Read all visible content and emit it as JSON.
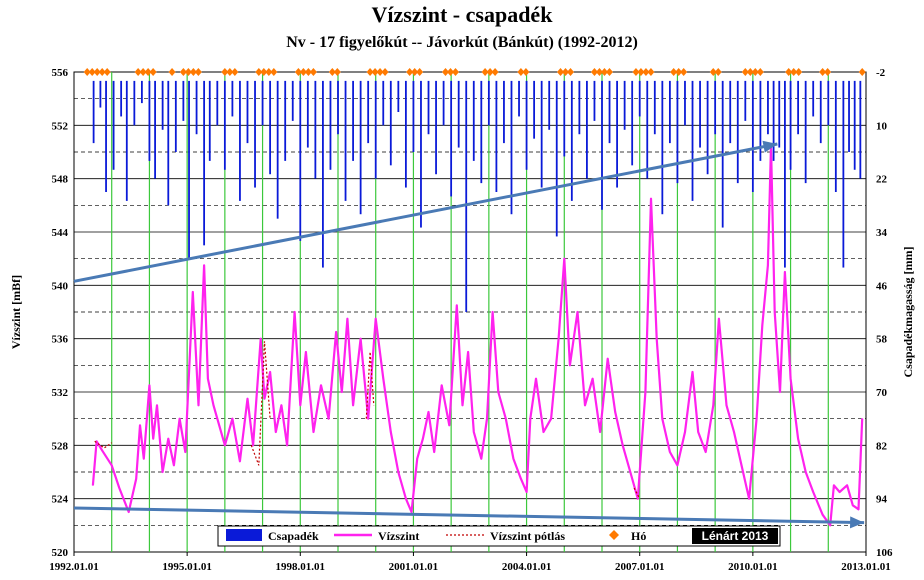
{
  "chart_data": {
    "type": "line",
    "title": "Vízszint - csapadék",
    "subtitle": "Nv - 17 figyelőkút -- Jávorkút (Bánkút) (1992-2012)",
    "ylabel": "Vízszint [mBf]",
    "y2label": "Csapadékmagasság [mm]",
    "xlabel": "",
    "ylim": [
      520,
      556
    ],
    "y2lim": [
      -2,
      106
    ],
    "yticks": [
      520,
      524,
      528,
      532,
      536,
      540,
      544,
      548,
      552,
      556
    ],
    "y2ticks": [
      -2,
      10,
      22,
      34,
      46,
      58,
      70,
      82,
      94,
      106
    ],
    "xlim": [
      1992.0,
      2013.0
    ],
    "xticks": [
      {
        "value": 1992.0,
        "label": "1992.01.01"
      },
      {
        "value": 1995.0,
        "label": "1995.01.01"
      },
      {
        "value": 1998.0,
        "label": "1998.01.01"
      },
      {
        "value": 2001.0,
        "label": "2001.01.01"
      },
      {
        "value": 2004.0,
        "label": "2004.01.01"
      },
      {
        "value": 2007.0,
        "label": "2007.01.01"
      },
      {
        "value": 2010.0,
        "label": "2010.01.01"
      },
      {
        "value": 2013.0,
        "label": "2013.01.01"
      }
    ],
    "legend": {
      "placement": "bottom",
      "entries": [
        {
          "name": "Csapadék",
          "symbol": "bar",
          "color": "#0a1ad8"
        },
        {
          "name": "Vízszint",
          "symbol": "line",
          "color": "#ff22ee"
        },
        {
          "name": "Vízszint pótlás",
          "symbol": "dotted",
          "color": "#c00000"
        },
        {
          "name": "Hó",
          "symbol": "diamond",
          "color": "#ff7a00"
        }
      ]
    },
    "credit": "Lénárt 2013",
    "series": [
      {
        "name": "Vízszint",
        "color": "#ff22ee",
        "points": [
          [
            1992.5,
            525.0
          ],
          [
            1992.6,
            528.3
          ],
          [
            1992.75,
            527.6
          ],
          [
            1993.0,
            526.5
          ],
          [
            1993.2,
            524.8
          ],
          [
            1993.45,
            523.0
          ],
          [
            1993.65,
            525.5
          ],
          [
            1993.75,
            529.5
          ],
          [
            1993.85,
            527.0
          ],
          [
            1994.0,
            532.5
          ],
          [
            1994.1,
            528.5
          ],
          [
            1994.2,
            531.0
          ],
          [
            1994.35,
            526.0
          ],
          [
            1994.5,
            528.5
          ],
          [
            1994.65,
            526.5
          ],
          [
            1994.8,
            530.0
          ],
          [
            1994.95,
            527.5
          ],
          [
            1995.15,
            539.5
          ],
          [
            1995.3,
            531.0
          ],
          [
            1995.45,
            541.5
          ],
          [
            1995.55,
            533.0
          ],
          [
            1995.7,
            531.0
          ],
          [
            1995.85,
            529.5
          ],
          [
            1996.0,
            528.0
          ],
          [
            1996.2,
            530.0
          ],
          [
            1996.4,
            526.8
          ],
          [
            1996.6,
            531.5
          ],
          [
            1996.75,
            528.0
          ],
          [
            1996.95,
            536.0
          ],
          [
            1997.05,
            531.5
          ],
          [
            1997.2,
            533.5
          ],
          [
            1997.35,
            529.0
          ],
          [
            1997.5,
            531.0
          ],
          [
            1997.65,
            528.0
          ],
          [
            1997.85,
            538.0
          ],
          [
            1998.0,
            531.0
          ],
          [
            1998.15,
            535.0
          ],
          [
            1998.35,
            529.0
          ],
          [
            1998.55,
            532.5
          ],
          [
            1998.75,
            530.0
          ],
          [
            1998.95,
            536.5
          ],
          [
            1999.1,
            532.0
          ],
          [
            1999.25,
            537.5
          ],
          [
            1999.4,
            531.0
          ],
          [
            1999.6,
            536.0
          ],
          [
            1999.8,
            530.0
          ],
          [
            2000.0,
            537.5
          ],
          [
            2000.2,
            533.0
          ],
          [
            2000.4,
            529.0
          ],
          [
            2000.6,
            526.0
          ],
          [
            2000.8,
            524.0
          ],
          [
            2000.95,
            523.0
          ],
          [
            2001.1,
            527.0
          ],
          [
            2001.25,
            528.5
          ],
          [
            2001.4,
            530.5
          ],
          [
            2001.55,
            527.5
          ],
          [
            2001.75,
            532.5
          ],
          [
            2001.95,
            529.5
          ],
          [
            2002.15,
            538.5
          ],
          [
            2002.3,
            531.0
          ],
          [
            2002.45,
            535.0
          ],
          [
            2002.6,
            529.0
          ],
          [
            2002.8,
            527.0
          ],
          [
            2002.95,
            530.0
          ],
          [
            2003.1,
            538.0
          ],
          [
            2003.25,
            532.0
          ],
          [
            2003.45,
            530.0
          ],
          [
            2003.65,
            527.0
          ],
          [
            2003.85,
            525.5
          ],
          [
            2004.0,
            524.5
          ],
          [
            2004.1,
            530.0
          ],
          [
            2004.25,
            533.0
          ],
          [
            2004.45,
            529.0
          ],
          [
            2004.65,
            530.0
          ],
          [
            2004.85,
            536.0
          ],
          [
            2005.0,
            542.0
          ],
          [
            2005.15,
            534.0
          ],
          [
            2005.35,
            538.0
          ],
          [
            2005.55,
            531.0
          ],
          [
            2005.75,
            533.0
          ],
          [
            2005.95,
            529.0
          ],
          [
            2006.15,
            534.5
          ],
          [
            2006.35,
            530.5
          ],
          [
            2006.55,
            528.0
          ],
          [
            2006.75,
            526.0
          ],
          [
            2006.95,
            524.0
          ],
          [
            2007.15,
            532.0
          ],
          [
            2007.3,
            546.5
          ],
          [
            2007.45,
            536.0
          ],
          [
            2007.6,
            530.0
          ],
          [
            2007.8,
            527.5
          ],
          [
            2008.0,
            526.5
          ],
          [
            2008.2,
            529.0
          ],
          [
            2008.4,
            533.5
          ],
          [
            2008.55,
            529.0
          ],
          [
            2008.75,
            527.5
          ],
          [
            2008.95,
            531.0
          ],
          [
            2009.1,
            537.5
          ],
          [
            2009.3,
            531.0
          ],
          [
            2009.5,
            529.0
          ],
          [
            2009.7,
            526.5
          ],
          [
            2009.9,
            524.0
          ],
          [
            2010.1,
            530.0
          ],
          [
            2010.25,
            537.0
          ],
          [
            2010.4,
            541.5
          ],
          [
            2010.48,
            550.5
          ],
          [
            2010.58,
            538.0
          ],
          [
            2010.72,
            532.0
          ],
          [
            2010.85,
            541.0
          ],
          [
            2011.0,
            533.0
          ],
          [
            2011.2,
            528.5
          ],
          [
            2011.4,
            526.0
          ],
          [
            2011.6,
            524.5
          ],
          [
            2011.85,
            522.8
          ],
          [
            2012.05,
            522.0
          ],
          [
            2012.15,
            525.0
          ],
          [
            2012.3,
            524.5
          ],
          [
            2012.5,
            525.0
          ],
          [
            2012.65,
            523.5
          ],
          [
            2012.8,
            523.2
          ],
          [
            2012.9,
            530.0
          ]
        ]
      },
      {
        "name": "Vízszint pótlás",
        "color": "#c00000",
        "segments": [
          [
            [
              1992.55,
              528.3
            ],
            [
              1992.8,
              527.8
            ],
            [
              1993.0,
              528.2
            ]
          ],
          [
            [
              1996.7,
              528.0
            ],
            [
              1996.9,
              526.5
            ],
            [
              1997.05,
              535.8
            ],
            [
              1997.2,
              530.0
            ]
          ],
          [
            [
              1999.75,
              530.0
            ],
            [
              1999.85,
              535.0
            ],
            [
              1999.95,
              531.0
            ]
          ],
          [
            [
              2006.85,
              524.8
            ],
            [
              2007.0,
              524.0
            ]
          ]
        ]
      }
    ],
    "precipitation": {
      "name": "Csapadék",
      "color": "#0a1ad8",
      "unit": "mm",
      "values": [
        [
          1992.52,
          14
        ],
        [
          1992.7,
          6
        ],
        [
          1992.85,
          25
        ],
        [
          1993.05,
          20
        ],
        [
          1993.25,
          8
        ],
        [
          1993.4,
          27
        ],
        [
          1993.6,
          10
        ],
        [
          1993.8,
          5
        ],
        [
          1994.0,
          18
        ],
        [
          1994.15,
          22
        ],
        [
          1994.35,
          11
        ],
        [
          1994.5,
          28
        ],
        [
          1994.7,
          16
        ],
        [
          1994.9,
          9
        ],
        [
          1995.05,
          40
        ],
        [
          1995.25,
          12
        ],
        [
          1995.45,
          37
        ],
        [
          1995.6,
          18
        ],
        [
          1995.8,
          10
        ],
        [
          1996.0,
          20
        ],
        [
          1996.2,
          8
        ],
        [
          1996.4,
          27
        ],
        [
          1996.6,
          14
        ],
        [
          1996.8,
          24
        ],
        [
          1997.0,
          10
        ],
        [
          1997.2,
          21
        ],
        [
          1997.4,
          31
        ],
        [
          1997.6,
          18
        ],
        [
          1997.8,
          9
        ],
        [
          1998.0,
          36
        ],
        [
          1998.2,
          15
        ],
        [
          1998.4,
          22
        ],
        [
          1998.6,
          42
        ],
        [
          1998.8,
          20
        ],
        [
          1999.0,
          12
        ],
        [
          1999.2,
          27
        ],
        [
          1999.4,
          18
        ],
        [
          1999.6,
          30
        ],
        [
          1999.8,
          14
        ],
        [
          2000.0,
          22
        ],
        [
          2000.2,
          10
        ],
        [
          2000.4,
          19
        ],
        [
          2000.6,
          7
        ],
        [
          2000.8,
          24
        ],
        [
          2001.0,
          16
        ],
        [
          2001.2,
          33
        ],
        [
          2001.4,
          12
        ],
        [
          2001.6,
          21
        ],
        [
          2001.8,
          10
        ],
        [
          2002.0,
          26
        ],
        [
          2002.2,
          15
        ],
        [
          2002.4,
          52
        ],
        [
          2002.6,
          18
        ],
        [
          2002.8,
          23
        ],
        [
          2003.0,
          10
        ],
        [
          2003.2,
          25
        ],
        [
          2003.4,
          14
        ],
        [
          2003.6,
          30
        ],
        [
          2003.8,
          8
        ],
        [
          2004.0,
          20
        ],
        [
          2004.2,
          13
        ],
        [
          2004.4,
          24
        ],
        [
          2004.6,
          11
        ],
        [
          2004.8,
          35
        ],
        [
          2005.0,
          17
        ],
        [
          2005.2,
          27
        ],
        [
          2005.4,
          12
        ],
        [
          2005.6,
          22
        ],
        [
          2005.8,
          9
        ],
        [
          2006.0,
          29
        ],
        [
          2006.2,
          14
        ],
        [
          2006.4,
          24
        ],
        [
          2006.6,
          11
        ],
        [
          2006.8,
          19
        ],
        [
          2007.0,
          8
        ],
        [
          2007.2,
          22
        ],
        [
          2007.4,
          12
        ],
        [
          2007.6,
          30
        ],
        [
          2007.8,
          14
        ],
        [
          2008.0,
          23
        ],
        [
          2008.2,
          10
        ],
        [
          2008.4,
          27
        ],
        [
          2008.6,
          15
        ],
        [
          2008.8,
          21
        ],
        [
          2009.0,
          12
        ],
        [
          2009.2,
          33
        ],
        [
          2009.4,
          14
        ],
        [
          2009.6,
          23
        ],
        [
          2009.8,
          9
        ],
        [
          2010.0,
          25
        ],
        [
          2010.2,
          18
        ],
        [
          2010.4,
          12
        ],
        [
          2010.55,
          18
        ],
        [
          2010.7,
          15
        ],
        [
          2010.85,
          42
        ],
        [
          2011.0,
          20
        ],
        [
          2011.2,
          12
        ],
        [
          2011.4,
          23
        ],
        [
          2011.6,
          8
        ],
        [
          2011.8,
          14
        ],
        [
          2012.0,
          10
        ],
        [
          2012.2,
          25
        ],
        [
          2012.4,
          42
        ],
        [
          2012.55,
          16
        ],
        [
          2012.7,
          20
        ],
        [
          2012.85,
          22
        ]
      ]
    },
    "snow": {
      "name": "Hó",
      "color": "#ff7a00",
      "periods": [
        [
          1992.35,
          1992.9
        ],
        [
          1993.7,
          1994.2
        ],
        [
          1994.6,
          1994.65
        ],
        [
          1994.9,
          1995.35
        ],
        [
          1996.0,
          1996.35
        ],
        [
          1996.9,
          1997.4
        ],
        [
          1997.95,
          1998.45
        ],
        [
          1998.85,
          1999.1
        ],
        [
          1999.85,
          2000.35
        ],
        [
          2000.9,
          2001.2
        ],
        [
          2001.85,
          2002.2
        ],
        [
          2002.9,
          2003.25
        ],
        [
          2003.85,
          2004.1
        ],
        [
          2004.9,
          2005.25
        ],
        [
          2005.8,
          2006.3
        ],
        [
          2006.9,
          2007.3
        ],
        [
          2007.9,
          2008.25
        ],
        [
          2008.95,
          2009.1
        ],
        [
          2009.8,
          2010.3
        ],
        [
          2010.95,
          2011.25
        ],
        [
          2011.85,
          2012.1
        ],
        [
          2012.9,
          2012.95
        ]
      ]
    },
    "annotations": [
      {
        "type": "trend-arrow",
        "description": "upward trend arrow",
        "from": [
          1992.0,
          540.3
        ],
        "to": [
          2010.65,
          550.6
        ],
        "axis": "left",
        "color": "#4a7ab5"
      },
      {
        "type": "trend-arrow",
        "description": "downward trend arrow",
        "from": [
          1992.0,
          523.3
        ],
        "to": [
          2012.95,
          522.2
        ],
        "axis": "left",
        "color": "#4a7ab5"
      }
    ]
  }
}
